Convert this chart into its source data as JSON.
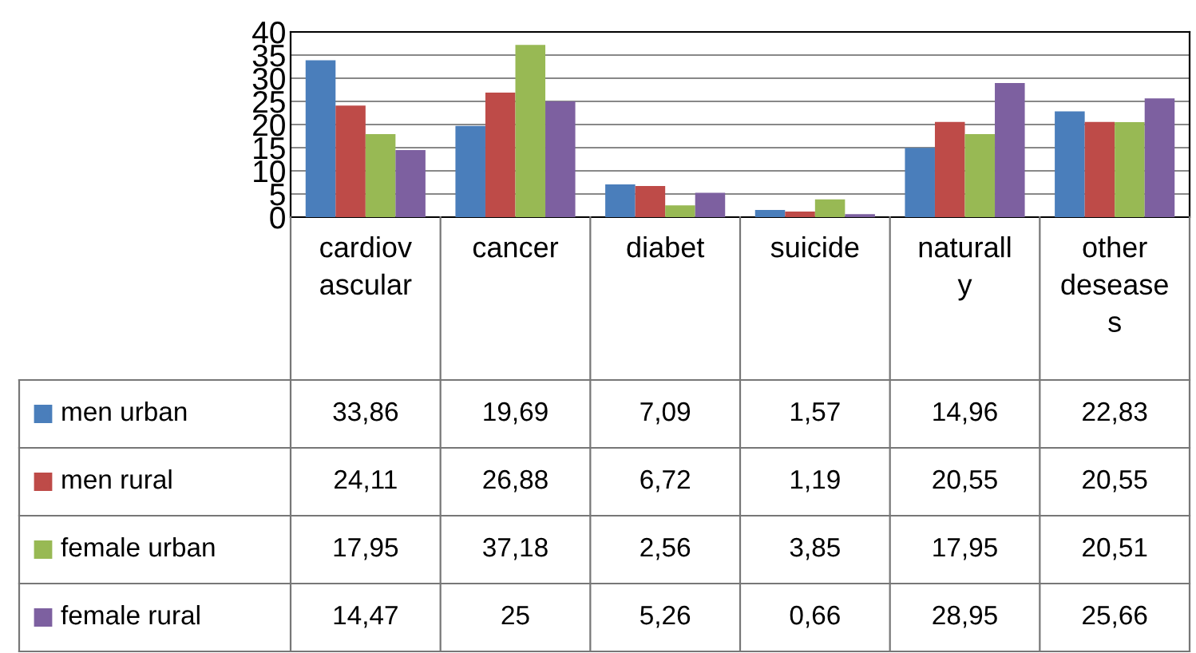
{
  "chart_data": {
    "type": "bar",
    "categories": [
      "cardiov\nascular",
      "cancer",
      "diabet",
      "suicide",
      "naturall\ny",
      "other\ndesease\ns"
    ],
    "series": [
      {
        "name": "men urban",
        "color": "#4a7ebb",
        "values": [
          33.86,
          19.69,
          7.09,
          1.57,
          14.96,
          22.83
        ],
        "value_labels": [
          "33,86",
          "19,69",
          "7,09",
          "1,57",
          "14,96",
          "22,83"
        ]
      },
      {
        "name": "men rural",
        "color": "#be4b48",
        "values": [
          24.11,
          26.88,
          6.72,
          1.19,
          20.55,
          20.55
        ],
        "value_labels": [
          "24,11",
          "26,88",
          "6,72",
          "1,19",
          "20,55",
          "20,55"
        ]
      },
      {
        "name": "female urban",
        "color": "#98b954",
        "values": [
          17.95,
          37.18,
          2.56,
          3.85,
          17.95,
          20.51
        ],
        "value_labels": [
          "17,95",
          "37,18",
          "2,56",
          "3,85",
          "17,95",
          "20,51"
        ]
      },
      {
        "name": "female rural",
        "color": "#7d60a0",
        "values": [
          14.47,
          25,
          5.26,
          0.66,
          28.95,
          25.66
        ],
        "value_labels": [
          "14,47",
          "25",
          "5,26",
          "0,66",
          "28,95",
          "25,66"
        ]
      }
    ],
    "ylim": [
      0,
      40
    ],
    "yticks": [
      0,
      5,
      10,
      15,
      20,
      25,
      30,
      35,
      40
    ],
    "grid": "y",
    "legend": "bottom left"
  }
}
